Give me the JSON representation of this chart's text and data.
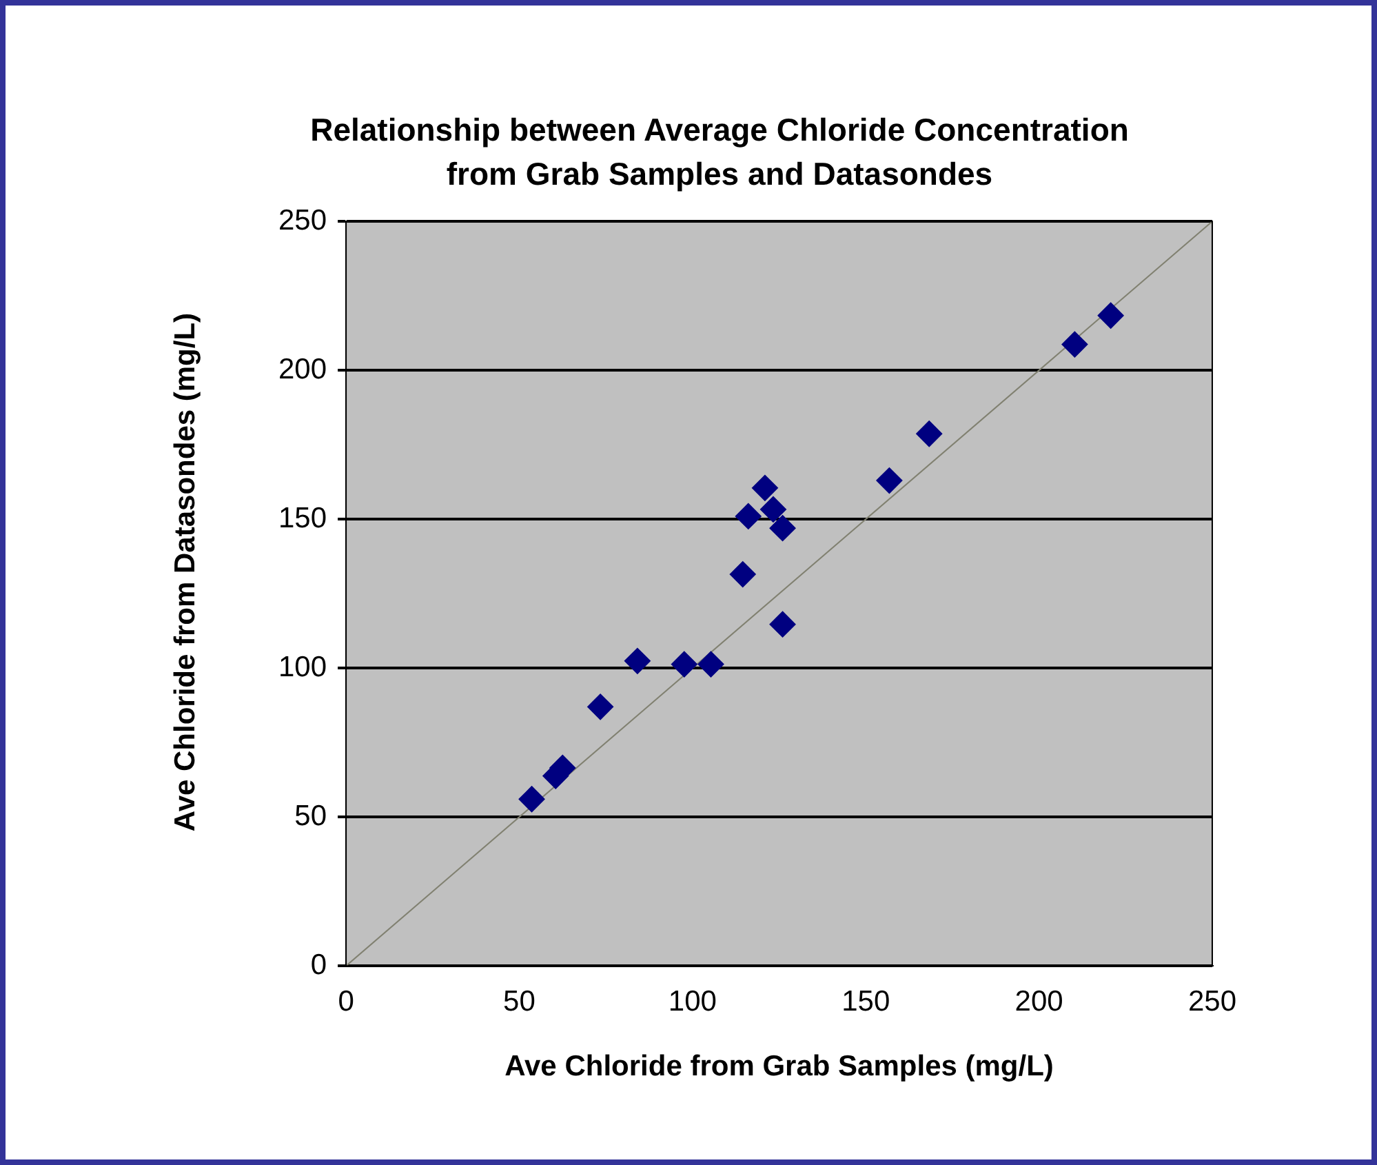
{
  "chart_data": {
    "type": "scatter",
    "title": "Relationship between Average Chloride Concentration from Grab Samples and Datasondes",
    "xlabel": "Ave Chloride from Grab Samples (mg/L)",
    "ylabel": "Ave Chloride from Datasondes (mg/L)",
    "series": [
      {
        "color": "#000080",
        "marker": "diamond",
        "x": [
          53.6,
          60.5,
          62.5,
          73.4,
          84.1,
          97.6,
          105.3,
          114.5,
          116.1,
          120.9,
          123.3,
          126,
          126,
          156.8,
          168.3,
          210.3,
          220.7
        ],
        "values": [
          56,
          63.8,
          66.5,
          87,
          102.4,
          101.3,
          101.3,
          131.5,
          151,
          160.5,
          153.3,
          147,
          114.7,
          163,
          178.7,
          208.7,
          218.4
        ]
      },
      {
        "type": "line",
        "color": "#808070",
        "marker": "none",
        "x": [
          0,
          250
        ],
        "values": [
          0,
          250
        ]
      }
    ],
    "xlim": [
      0,
      250
    ],
    "xticks": [
      0,
      50,
      100,
      150,
      200,
      250
    ],
    "ylim": [
      0,
      250
    ],
    "yticks": [
      0,
      50,
      100,
      150,
      200,
      250
    ],
    "grid": "y",
    "legend": false
  }
}
